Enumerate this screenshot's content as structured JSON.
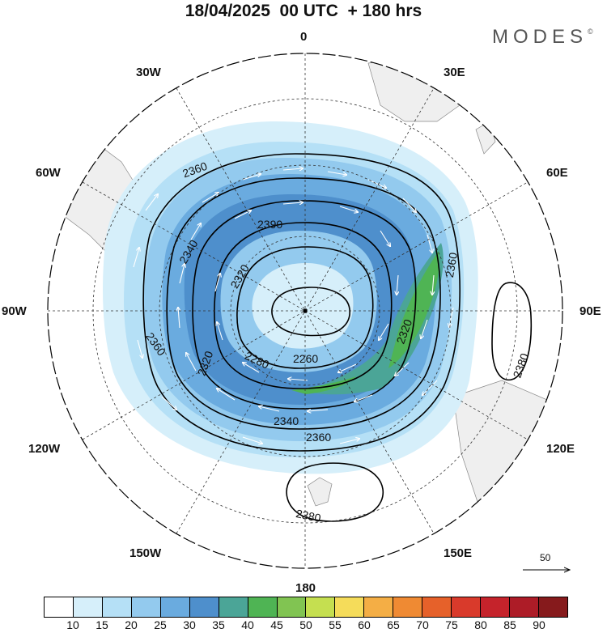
{
  "header": {
    "title": "18/04/2025  00 UTC  + 180 hrs",
    "brand": "MODES",
    "brand_mark": "©"
  },
  "map": {
    "projection": "south-polar-stereographic",
    "center_marker": "south-pole-dot",
    "longitude_labels": [
      "0",
      "30E",
      "60E",
      "90E",
      "120E",
      "150E",
      "180",
      "150W",
      "120W",
      "90W",
      "60W",
      "30W"
    ],
    "contour_labels": [
      "2360",
      "2390",
      "2340",
      "2320",
      "2360",
      "2260",
      "2280",
      "2320",
      "2340",
      "2360",
      "2360",
      "2380",
      "2380",
      "2320"
    ],
    "wind_speed_shading": "jet core above 40 over the Indian Ocean sector",
    "land_color": "#efefef",
    "colors": {
      "ring": "#000000",
      "gridline": "#333333",
      "contour": "#000000",
      "wind_arrow": "#ffffff"
    }
  },
  "legend": {
    "reference_vector_label": "50",
    "colorbar": {
      "colors": [
        "#ffffff",
        "#d6effa",
        "#b5e0f6",
        "#93caee",
        "#6aabdf",
        "#4e8fcc",
        "#4ba597",
        "#4fb454",
        "#81c452",
        "#c5df50",
        "#f5dc5a",
        "#f4ae45",
        "#ef8a33",
        "#e6612a",
        "#d93a2b",
        "#c5232b",
        "#ad1c27",
        "#861a1c"
      ],
      "tick_labels": [
        "10",
        "15",
        "20",
        "25",
        "30",
        "35",
        "40",
        "45",
        "50",
        "55",
        "60",
        "65",
        "70",
        "75",
        "80",
        "85",
        "90"
      ]
    }
  }
}
